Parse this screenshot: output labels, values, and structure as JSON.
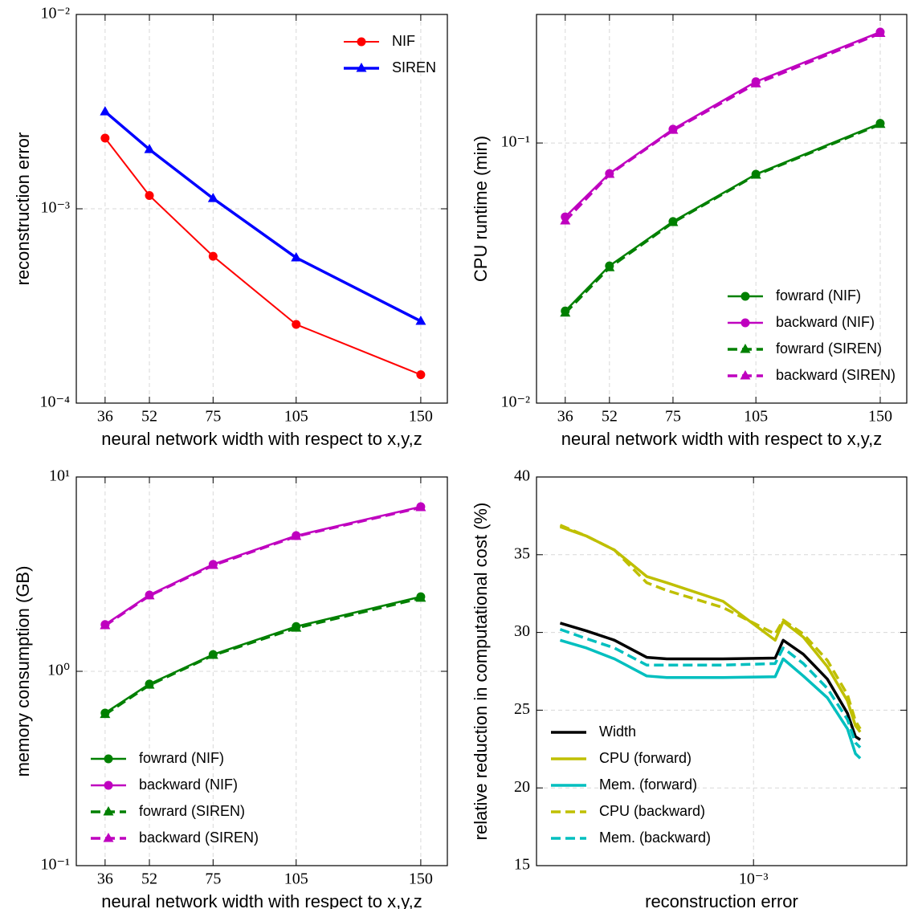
{
  "chart_data": [
    {
      "type": "line",
      "xlabel": "neural network width with respect to x,y,z",
      "ylabel": "reconstruction error",
      "x": [
        36,
        52,
        75,
        105,
        150
      ],
      "xlim": [
        25.6,
        159.6
      ],
      "xticks": [
        36,
        52,
        75,
        105,
        150
      ],
      "yscale": "log",
      "ylim": [
        0.0001,
        0.01
      ],
      "yticks": [
        {
          "value": 0.0001,
          "label": "10⁻⁴"
        },
        {
          "value": 0.001,
          "label": "10⁻³"
        },
        {
          "value": 0.01,
          "label": "10⁻²"
        }
      ],
      "grid": true,
      "legend": "upper right",
      "series": [
        {
          "name": "NIF",
          "color": "#ff0000",
          "linestyle": "solid",
          "marker": "circle",
          "width": 2,
          "values": [
            0.00231,
            0.00117,
            0.00057,
            0.000254,
            0.00014
          ]
        },
        {
          "name": "SIREN",
          "color": "#0000ff",
          "linestyle": "solid",
          "marker": "triangle",
          "width": 3.5,
          "values": [
            0.00316,
            0.00202,
            0.00113,
            0.00056,
            0.000264
          ]
        }
      ]
    },
    {
      "type": "line",
      "xlabel": "neural network width with respect to x,y,z",
      "ylabel": "CPU runtime (min)",
      "x": [
        36,
        52,
        75,
        105,
        150
      ],
      "xlim": [
        25.6,
        159.6
      ],
      "xticks": [
        36,
        52,
        75,
        105,
        150
      ],
      "yscale": "log",
      "ylim": [
        0.01,
        0.312
      ],
      "yticks": [
        {
          "value": 0.01,
          "label": "10⁻²"
        },
        {
          "value": 0.1,
          "label": "10⁻¹"
        }
      ],
      "grid": true,
      "legend": "lower right",
      "series": [
        {
          "name": "fowrard (NIF)",
          "color": "#008000",
          "linestyle": "solid",
          "marker": "circle",
          "width": 2.5,
          "values": [
            0.0226,
            0.0337,
            0.0499,
            0.0758,
            0.119
          ]
        },
        {
          "name": "backward (NIF)",
          "color": "#bf00bf",
          "linestyle": "solid",
          "marker": "circle",
          "width": 2.5,
          "values": [
            0.052,
            0.0763,
            0.113,
            0.172,
            0.267
          ]
        },
        {
          "name": "fowrard (SIREN)",
          "color": "#008000",
          "linestyle": "dashed",
          "marker": "triangle",
          "width": 3.5,
          "values": [
            0.0222,
            0.0332,
            0.0495,
            0.0753,
            0.118
          ]
        },
        {
          "name": "backward (SIREN)",
          "color": "#bf00bf",
          "linestyle": "dashed",
          "marker": "triangle",
          "width": 3.5,
          "values": [
            0.0502,
            0.0758,
            0.112,
            0.169,
            0.264
          ]
        }
      ]
    },
    {
      "type": "line",
      "xlabel": "neural network width with respect to x,y,z",
      "ylabel": "memory consumption (GB)",
      "x": [
        36,
        52,
        75,
        105,
        150
      ],
      "xlim": [
        25.6,
        159.6
      ],
      "xticks": [
        36,
        52,
        75,
        105,
        150
      ],
      "yscale": "log",
      "ylim": [
        0.1,
        10
      ],
      "yticks": [
        {
          "value": 0.1,
          "label": "10⁻¹"
        },
        {
          "value": 1,
          "label": "10⁰"
        },
        {
          "value": 10,
          "label": "10¹"
        }
      ],
      "grid": true,
      "legend": "lower left",
      "series": [
        {
          "name": "fowrard (NIF)",
          "color": "#008000",
          "linestyle": "solid",
          "marker": "circle",
          "width": 2.5,
          "values": [
            0.61,
            0.86,
            1.22,
            1.7,
            2.42
          ]
        },
        {
          "name": "backward (NIF)",
          "color": "#bf00bf",
          "linestyle": "solid",
          "marker": "circle",
          "width": 2.5,
          "values": [
            1.74,
            2.47,
            3.55,
            4.99,
            7.03
          ]
        },
        {
          "name": "fowrard (SIREN)",
          "color": "#008000",
          "linestyle": "dashed",
          "marker": "triangle",
          "width": 3.5,
          "values": [
            0.6,
            0.85,
            1.21,
            1.67,
            2.38
          ]
        },
        {
          "name": "backward (SIREN)",
          "color": "#bf00bf",
          "linestyle": "dashed",
          "marker": "triangle",
          "width": 3.5,
          "values": [
            1.72,
            2.45,
            3.51,
            4.95,
            6.97
          ]
        }
      ]
    },
    {
      "type": "line",
      "xlabel": "reconstruction error",
      "ylabel": "relative reduction in computational cost (%)",
      "xscale": "log",
      "x": [
        0.00025,
        0.000302,
        0.000369,
        0.000465,
        0.000537,
        0.000804,
        0.001168,
        0.001237,
        0.001429,
        0.001698,
        0.001961,
        0.002077,
        0.002149
      ],
      "xlim": [
        0.000211,
        0.003
      ],
      "xticks": [
        {
          "value": 0.001,
          "label": "10⁻³"
        }
      ],
      "ylim": [
        15,
        40
      ],
      "yticks": [
        15,
        20,
        25,
        30,
        35,
        40
      ],
      "grid": true,
      "legend": "lower left",
      "series": [
        {
          "name": "Width",
          "color": "#000000",
          "linestyle": "solid",
          "width": 3.5,
          "values": [
            30.6,
            30.1,
            29.5,
            28.4,
            28.3,
            28.3,
            28.35,
            29.5,
            28.6,
            27.0,
            24.8,
            23.3,
            23.1
          ]
        },
        {
          "name": "CPU (forward)",
          "color": "#bfbf00",
          "linestyle": "solid",
          "width": 3.5,
          "values": [
            36.8,
            36.2,
            35.3,
            33.6,
            33.2,
            32.0,
            29.5,
            30.7,
            29.7,
            27.8,
            25.6,
            24.0,
            23.6
          ]
        },
        {
          "name": "Mem. (forward)",
          "color": "#00bfbf",
          "linestyle": "solid",
          "width": 3.5,
          "values": [
            29.5,
            29.0,
            28.3,
            27.2,
            27.1,
            27.1,
            27.15,
            28.3,
            27.2,
            25.8,
            23.8,
            22.2,
            21.9
          ]
        },
        {
          "name": "CPU (backward)",
          "color": "#bfbf00",
          "linestyle": "dashed",
          "width": 3.5,
          "values": [
            36.9,
            36.2,
            35.3,
            33.2,
            32.7,
            31.6,
            29.9,
            30.8,
            29.9,
            28.2,
            26.0,
            24.3,
            23.8
          ]
        },
        {
          "name": "Mem. (backward)",
          "color": "#00bfbf",
          "linestyle": "dashed",
          "width": 3.5,
          "values": [
            30.2,
            29.6,
            29.0,
            27.9,
            27.9,
            27.9,
            28.0,
            29.0,
            28.0,
            26.4,
            24.4,
            22.9,
            22.6
          ]
        }
      ]
    }
  ]
}
